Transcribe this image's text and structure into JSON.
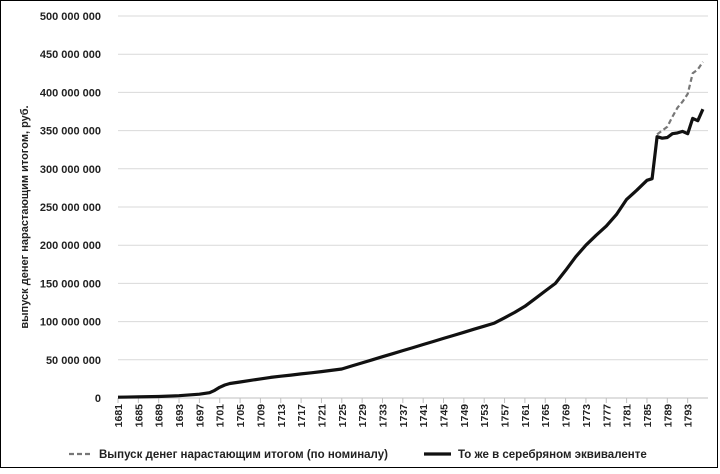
{
  "chart_data": {
    "type": "line",
    "title": "",
    "xlabel": "",
    "ylabel": "выпуск денег нарастающим итогом, руб.",
    "xlim": [
      1681,
      1797
    ],
    "ylim": [
      0,
      500000000
    ],
    "y_ticks": [
      0,
      50000000,
      100000000,
      150000000,
      200000000,
      250000000,
      300000000,
      350000000,
      400000000,
      450000000,
      500000000
    ],
    "y_tick_labels": [
      "0",
      "50 000 000",
      "100 000 000",
      "150 000 000",
      "200 000 000",
      "250 000 000",
      "300 000 000",
      "350 000 000",
      "400 000 000",
      "450 000 000",
      "500 000 000"
    ],
    "x_tick_labels": [
      "1681",
      "1685",
      "1689",
      "1693",
      "1697",
      "1701",
      "1705",
      "1709",
      "1713",
      "1717",
      "1721",
      "1725",
      "1729",
      "1733",
      "1737",
      "1741",
      "1745",
      "1749",
      "1753",
      "1757",
      "1761",
      "1765",
      "1769",
      "1773",
      "1777",
      "1781",
      "1785",
      "1789",
      "1793"
    ],
    "grid": "horizontal",
    "legend_position": "bottom",
    "series": [
      {
        "name": "Выпуск денег нарастающим итогом (по номиналу)",
        "style": "dashed",
        "color": "#777777",
        "points": [
          [
            1787,
            345000000
          ],
          [
            1788,
            350000000
          ],
          [
            1789,
            355000000
          ],
          [
            1790,
            368000000
          ],
          [
            1791,
            380000000
          ],
          [
            1792,
            388000000
          ],
          [
            1793,
            398000000
          ],
          [
            1794,
            425000000
          ],
          [
            1795,
            430000000
          ],
          [
            1796,
            440000000
          ]
        ]
      },
      {
        "name": "То же в серебряном эквиваленте",
        "style": "solid",
        "color": "#111111",
        "points": [
          [
            1681,
            1000000
          ],
          [
            1685,
            1500000
          ],
          [
            1689,
            2000000
          ],
          [
            1693,
            3000000
          ],
          [
            1697,
            5000000
          ],
          [
            1699,
            7000000
          ],
          [
            1700,
            10000000
          ],
          [
            1701,
            14000000
          ],
          [
            1702,
            17000000
          ],
          [
            1703,
            19000000
          ],
          [
            1705,
            21000000
          ],
          [
            1707,
            23000000
          ],
          [
            1709,
            25000000
          ],
          [
            1711,
            27000000
          ],
          [
            1713,
            28500000
          ],
          [
            1715,
            30000000
          ],
          [
            1717,
            31500000
          ],
          [
            1719,
            33000000
          ],
          [
            1721,
            34500000
          ],
          [
            1725,
            38000000
          ],
          [
            1727,
            42000000
          ],
          [
            1729,
            46000000
          ],
          [
            1731,
            50000000
          ],
          [
            1733,
            54000000
          ],
          [
            1735,
            58000000
          ],
          [
            1737,
            62000000
          ],
          [
            1739,
            66000000
          ],
          [
            1741,
            70000000
          ],
          [
            1743,
            74000000
          ],
          [
            1745,
            78000000
          ],
          [
            1747,
            82000000
          ],
          [
            1749,
            86000000
          ],
          [
            1751,
            90000000
          ],
          [
            1753,
            94000000
          ],
          [
            1755,
            98000000
          ],
          [
            1757,
            105000000
          ],
          [
            1759,
            112000000
          ],
          [
            1761,
            120000000
          ],
          [
            1763,
            130000000
          ],
          [
            1765,
            140000000
          ],
          [
            1767,
            150000000
          ],
          [
            1769,
            167000000
          ],
          [
            1771,
            185000000
          ],
          [
            1773,
            200000000
          ],
          [
            1775,
            213000000
          ],
          [
            1777,
            225000000
          ],
          [
            1779,
            240000000
          ],
          [
            1781,
            260000000
          ],
          [
            1783,
            272000000
          ],
          [
            1785,
            285000000
          ],
          [
            1786,
            287000000
          ],
          [
            1787,
            342000000
          ],
          [
            1788,
            340000000
          ],
          [
            1789,
            341000000
          ],
          [
            1790,
            346000000
          ],
          [
            1791,
            347000000
          ],
          [
            1792,
            349000000
          ],
          [
            1793,
            346000000
          ],
          [
            1794,
            366000000
          ],
          [
            1795,
            363000000
          ],
          [
            1796,
            378000000
          ]
        ]
      }
    ]
  }
}
